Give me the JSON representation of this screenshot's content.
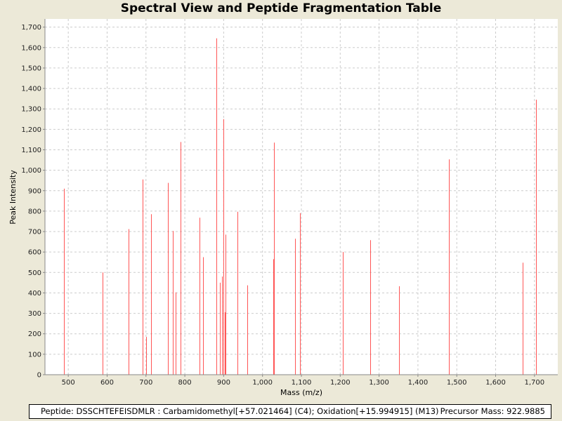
{
  "chart_data": {
    "type": "bar",
    "title": "Spectral View and Peptide Fragmentation Table",
    "xlabel": "Mass (m/z)",
    "ylabel": "Peak Intensity",
    "xlim": [
      440,
      1760
    ],
    "ylim": [
      0,
      1740
    ],
    "xticks": [
      500,
      600,
      700,
      800,
      900,
      1000,
      1100,
      1200,
      1300,
      1400,
      1500,
      1600,
      1700
    ],
    "xtick_labels": [
      "500",
      "600",
      "700",
      "800",
      "900",
      "1,000",
      "1,100",
      "1,200",
      "1,300",
      "1,400",
      "1,500",
      "1,600",
      "1,700"
    ],
    "yticks": [
      0,
      100,
      200,
      300,
      400,
      500,
      600,
      700,
      800,
      900,
      1000,
      1100,
      1200,
      1300,
      1400,
      1500,
      1600,
      1700
    ],
    "ytick_labels": [
      "0",
      "100",
      "200",
      "300",
      "400",
      "500",
      "600",
      "700",
      "800",
      "900",
      "1,000",
      "1,100",
      "1,200",
      "1,300",
      "1,400",
      "1,500",
      "1,600",
      "1,700"
    ],
    "grid": true,
    "color": "#ff5555",
    "peaks": [
      {
        "x": 489,
        "y": 910
      },
      {
        "x": 589,
        "y": 500
      },
      {
        "x": 656,
        "y": 712
      },
      {
        "x": 692,
        "y": 955
      },
      {
        "x": 700,
        "y": 185
      },
      {
        "x": 713,
        "y": 785
      },
      {
        "x": 756,
        "y": 938
      },
      {
        "x": 769,
        "y": 703
      },
      {
        "x": 776,
        "y": 403
      },
      {
        "x": 789,
        "y": 1138
      },
      {
        "x": 837,
        "y": 768
      },
      {
        "x": 847,
        "y": 575
      },
      {
        "x": 881,
        "y": 1645
      },
      {
        "x": 891,
        "y": 450
      },
      {
        "x": 896,
        "y": 480
      },
      {
        "x": 900,
        "y": 1250
      },
      {
        "x": 903,
        "y": 305
      },
      {
        "x": 905,
        "y": 685
      },
      {
        "x": 936,
        "y": 797
      },
      {
        "x": 960,
        "y": 437
      },
      {
        "x": 1027,
        "y": 565
      },
      {
        "x": 1029,
        "y": 1135
      },
      {
        "x": 1083,
        "y": 665
      },
      {
        "x": 1097,
        "y": 790
      },
      {
        "x": 1207,
        "y": 600
      },
      {
        "x": 1278,
        "y": 658
      },
      {
        "x": 1351,
        "y": 433
      },
      {
        "x": 1480,
        "y": 1053
      },
      {
        "x": 1670,
        "y": 548
      },
      {
        "x": 1704,
        "y": 1345
      }
    ]
  },
  "info": {
    "peptide": "Peptide: DSSCHTEFEISDMLR : Carbamidomethyl[+57.021464] (C4); Oxidation[+15.994915] (M13)",
    "precursor": "Precursor Mass: 922.9885"
  }
}
